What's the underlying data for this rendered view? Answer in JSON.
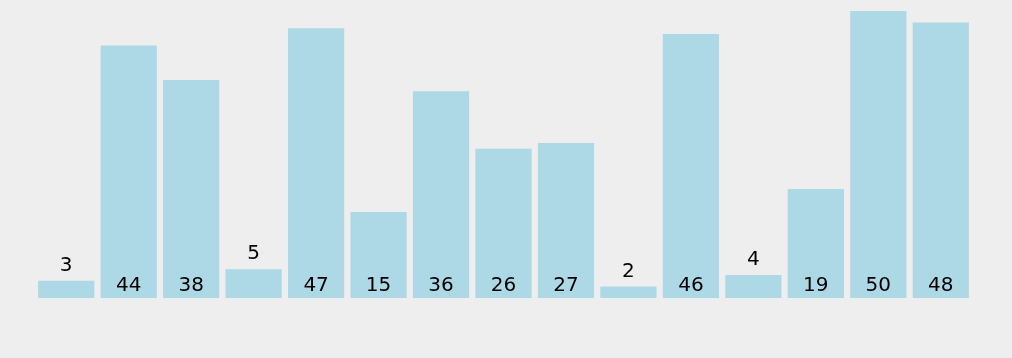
{
  "chart_data": {
    "type": "bar",
    "categories": [
      null,
      null,
      null,
      null,
      null,
      null,
      null,
      null,
      null,
      null,
      null,
      null,
      null,
      null,
      null
    ],
    "values": [
      3,
      44,
      38,
      5,
      47,
      15,
      36,
      26,
      27,
      2,
      46,
      4,
      19,
      50,
      48
    ],
    "color": "#add8e6",
    "data_labels": true
  }
}
